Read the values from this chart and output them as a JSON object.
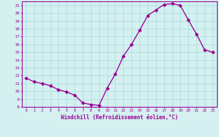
{
  "x": [
    0,
    1,
    2,
    3,
    4,
    5,
    6,
    7,
    8,
    9,
    10,
    11,
    12,
    13,
    14,
    15,
    16,
    17,
    18,
    19,
    20,
    21,
    22,
    23
  ],
  "y": [
    11.7,
    11.2,
    11.0,
    10.7,
    10.2,
    9.9,
    9.5,
    8.5,
    8.3,
    8.2,
    10.4,
    12.2,
    14.5,
    16.0,
    17.8,
    19.7,
    20.4,
    21.1,
    21.2,
    21.0,
    19.1,
    17.3,
    15.3,
    15.0
  ],
  "xlabel": "Windchill (Refroidissement éolien,°C)",
  "ylim": [
    8,
    21.5
  ],
  "xlim": [
    -0.5,
    23.5
  ],
  "yticks": [
    8,
    9,
    10,
    11,
    12,
    13,
    14,
    15,
    16,
    17,
    18,
    19,
    20,
    21
  ],
  "xticks": [
    0,
    1,
    2,
    3,
    4,
    5,
    6,
    7,
    8,
    9,
    10,
    11,
    12,
    13,
    14,
    15,
    16,
    17,
    18,
    19,
    20,
    21,
    22,
    23
  ],
  "line_color": "#990099",
  "bg_color": "#d4f0f0",
  "grid_color": "#aadddd",
  "tick_label_color": "#990099",
  "xlabel_color": "#990099",
  "marker": "D",
  "markersize": 2.5,
  "linewidth": 1.0
}
